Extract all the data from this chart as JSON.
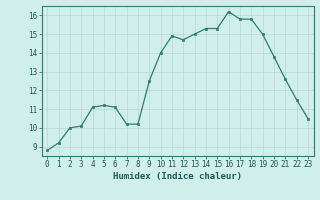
{
  "x": [
    0,
    1,
    2,
    3,
    4,
    5,
    6,
    7,
    8,
    9,
    10,
    11,
    12,
    13,
    14,
    15,
    16,
    17,
    18,
    19,
    20,
    21,
    22,
    23
  ],
  "y": [
    8.8,
    9.2,
    10.0,
    10.1,
    11.1,
    11.2,
    11.1,
    10.2,
    10.2,
    12.5,
    14.0,
    14.9,
    14.7,
    15.0,
    15.3,
    15.3,
    16.2,
    15.8,
    15.8,
    15.0,
    13.8,
    12.6,
    11.5,
    10.5
  ],
  "xlabel": "Humidex (Indice chaleur)",
  "ylim": [
    8.5,
    16.5
  ],
  "xlim": [
    -0.5,
    23.5
  ],
  "yticks": [
    9,
    10,
    11,
    12,
    13,
    14,
    15,
    16
  ],
  "xticks": [
    0,
    1,
    2,
    3,
    4,
    5,
    6,
    7,
    8,
    9,
    10,
    11,
    12,
    13,
    14,
    15,
    16,
    17,
    18,
    19,
    20,
    21,
    22,
    23
  ],
  "line_color": "#2e7d6e",
  "marker_color": "#2e7d6e",
  "bg_color": "#d0eeea",
  "grid_color": "#b8d8d2",
  "axis_color": "#2e7d6e",
  "tick_label_color": "#1a5c52",
  "xlabel_color": "#1a5c52",
  "tick_fontsize": 5.5,
  "xlabel_fontsize": 6.5
}
